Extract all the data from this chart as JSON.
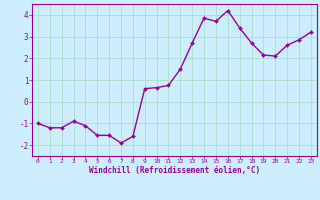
{
  "x": [
    0,
    1,
    2,
    3,
    4,
    5,
    6,
    7,
    8,
    9,
    10,
    11,
    12,
    13,
    14,
    15,
    16,
    17,
    18,
    19,
    20,
    21,
    22,
    23
  ],
  "y": [
    -1.0,
    -1.2,
    -1.2,
    -0.9,
    -1.1,
    -1.55,
    -1.55,
    -1.9,
    -1.6,
    0.6,
    0.65,
    0.75,
    1.5,
    2.7,
    3.85,
    3.7,
    4.2,
    3.4,
    2.7,
    2.15,
    2.1,
    2.6,
    2.85,
    3.2
  ],
  "line_color": "#990099",
  "marker": "D",
  "marker_size": 2.0,
  "line_width": 1.0,
  "bg_color": "#cceeff",
  "grid_color": "#aaddcc",
  "tick_label_color": "#990099",
  "axis_label_color": "#990099",
  "xlabel": "Windchill (Refroidissement éolien,°C)",
  "xlim": [
    -0.5,
    23.5
  ],
  "ylim": [
    -2.5,
    4.5
  ],
  "yticks": [
    -2,
    -1,
    0,
    1,
    2,
    3,
    4
  ],
  "xticks": [
    0,
    1,
    2,
    3,
    4,
    5,
    6,
    7,
    8,
    9,
    10,
    11,
    12,
    13,
    14,
    15,
    16,
    17,
    18,
    19,
    20,
    21,
    22,
    23
  ]
}
